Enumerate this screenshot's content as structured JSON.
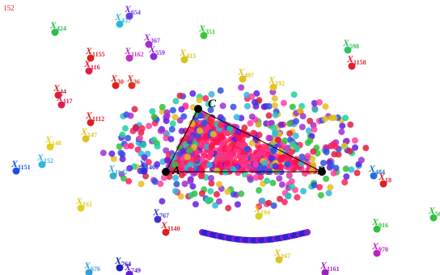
{
  "corner_note": "152",
  "vertices": [
    {
      "label": "A"
    },
    {
      "label": "B"
    },
    {
      "label": "C"
    }
  ],
  "points": [
    {
      "label": "X",
      "index": "424",
      "color": "#2bbf4a"
    },
    {
      "label": "X",
      "index": "437",
      "color": "#2bb8d8"
    },
    {
      "label": "X",
      "index": "654",
      "color": "#6a3fe0"
    },
    {
      "label": "X",
      "index": "351",
      "color": "#3ec43a"
    },
    {
      "label": "X",
      "index": "367",
      "color": "#a030d0"
    },
    {
      "label": "X",
      "index": "559",
      "color": "#8a2ad8"
    },
    {
      "label": "X",
      "index": "1155",
      "color": "#e02020"
    },
    {
      "label": "X",
      "index": "1162",
      "color": "#c030c0"
    },
    {
      "label": "X",
      "index": "413",
      "color": "#d8c020"
    },
    {
      "label": "X",
      "index": "598",
      "color": "#30c060"
    },
    {
      "label": "X",
      "index": "1158",
      "color": "#e02030"
    },
    {
      "label": "X",
      "index": "116",
      "color": "#e02040"
    },
    {
      "label": "X",
      "index": "30",
      "color": "#e02020"
    },
    {
      "label": "X",
      "index": "36",
      "color": "#e03020"
    },
    {
      "label": "X",
      "index": "44",
      "color": "#e02030"
    },
    {
      "label": "X",
      "index": "117",
      "color": "#e02050"
    },
    {
      "label": "X",
      "index": "497",
      "color": "#e0c020"
    },
    {
      "label": "X",
      "index": "192",
      "color": "#e0c820"
    },
    {
      "label": "X",
      "index": "1112",
      "color": "#e02020"
    },
    {
      "label": "X",
      "index": "148",
      "color": "#e0d020"
    },
    {
      "label": "X",
      "index": "147",
      "color": "#e0c020"
    },
    {
      "label": "X",
      "index": "1151",
      "color": "#2050e0"
    },
    {
      "label": "X",
      "index": "152",
      "color": "#30b8d8"
    },
    {
      "label": "X",
      "index": "1647",
      "color": "#30b0d0"
    },
    {
      "label": "X",
      "index": "1400",
      "color": "#3030e0"
    },
    {
      "label": "X",
      "index": "484",
      "color": "#2070e0"
    },
    {
      "label": "X",
      "index": "18",
      "color": "#e02020"
    },
    {
      "label": "X",
      "index": "161",
      "color": "#e0d020"
    },
    {
      "label": "X",
      "index": "767",
      "color": "#4030d0"
    },
    {
      "label": "X",
      "index": "1140",
      "color": "#e02020"
    },
    {
      "label": "X",
      "index": "194",
      "color": "#d8d020"
    },
    {
      "label": "X",
      "index": "916",
      "color": "#30c040"
    },
    {
      "label": "X",
      "index": "764",
      "color": "#2020c0"
    },
    {
      "label": "X",
      "index": "749",
      "color": "#6020d0"
    },
    {
      "label": "X",
      "index": "676",
      "color": "#30a0d8"
    },
    {
      "label": "X",
      "index": "1161",
      "color": "#a020c0"
    },
    {
      "label": "X",
      "index": "970",
      "color": "#c020c0"
    },
    {
      "label": "X",
      "index": "167",
      "color": "#e0c020"
    },
    {
      "label": "X",
      "index": "56",
      "color": "#30c040"
    }
  ]
}
